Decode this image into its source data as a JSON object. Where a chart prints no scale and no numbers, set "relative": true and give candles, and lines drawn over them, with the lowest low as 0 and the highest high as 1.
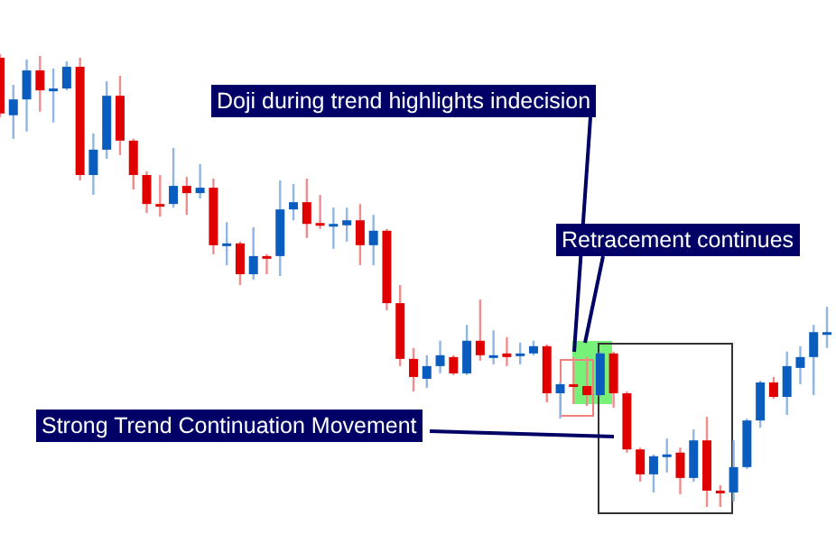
{
  "chart_data": {
    "type": "candlestick",
    "relative": true,
    "categories": [
      null,
      null,
      null,
      null,
      null,
      null,
      null,
      null,
      null,
      null,
      null,
      null,
      null,
      null,
      null,
      null,
      null,
      null,
      null,
      null,
      null,
      null,
      null,
      null,
      null,
      null,
      null,
      null,
      null,
      null,
      null,
      null,
      null,
      null,
      null,
      null,
      null,
      null,
      null,
      null,
      null,
      null,
      null,
      null,
      null,
      null,
      null,
      null,
      null,
      null,
      null,
      null,
      null,
      null,
      null,
      null,
      null,
      null,
      null,
      null,
      null,
      null,
      null
    ],
    "ohlc": [
      [
        0.992,
        1,
        0.861,
        0.869
      ],
      [
        0.865,
        0.932,
        0.813,
        0.9
      ],
      [
        0.9,
        0.988,
        0.829,
        0.964
      ],
      [
        0.964,
        0.996,
        0.873,
        0.92
      ],
      [
        0.922,
        0.968,
        0.849,
        0.924
      ],
      [
        0.924,
        0.984,
        0.92,
        0.972
      ],
      [
        0.972,
        0.992,
        0.721,
        0.733
      ],
      [
        0.733,
        0.825,
        0.689,
        0.789
      ],
      [
        0.789,
        0.94,
        0.769,
        0.908
      ],
      [
        0.908,
        0.952,
        0.777,
        0.809
      ],
      [
        0.809,
        0.813,
        0.701,
        0.733
      ],
      [
        0.733,
        0.741,
        0.649,
        0.669
      ],
      [
        0.669,
        0.733,
        0.641,
        0.665
      ],
      [
        0.669,
        0.793,
        0.661,
        0.709
      ],
      [
        0.709,
        0.729,
        0.645,
        0.693
      ],
      [
        0.693,
        0.757,
        0.681,
        0.705
      ],
      [
        0.705,
        0.725,
        0.558,
        0.578
      ],
      [
        0.58,
        0.629,
        0.534,
        0.582
      ],
      [
        0.582,
        0.586,
        0.49,
        0.514
      ],
      [
        0.514,
        0.618,
        0.502,
        0.554
      ],
      [
        0.554,
        0.558,
        0.514,
        0.55
      ],
      [
        0.554,
        0.721,
        0.51,
        0.657
      ],
      [
        0.657,
        0.713,
        0.633,
        0.673
      ],
      [
        0.673,
        0.725,
        0.594,
        0.625
      ],
      [
        0.627,
        0.689,
        0.614,
        0.624
      ],
      [
        0.622,
        0.661,
        0.57,
        0.625
      ],
      [
        0.622,
        0.661,
        0.586,
        0.633
      ],
      [
        0.633,
        0.669,
        0.534,
        0.578
      ],
      [
        0.578,
        0.645,
        0.534,
        0.61
      ],
      [
        0.61,
        0.614,
        0.434,
        0.45
      ],
      [
        0.45,
        0.49,
        0.311,
        0.327
      ],
      [
        0.327,
        0.351,
        0.255,
        0.287
      ],
      [
        0.283,
        0.335,
        0.263,
        0.311
      ],
      [
        0.311,
        0.367,
        0.295,
        0.335
      ],
      [
        0.331,
        0.335,
        0.291,
        0.295
      ],
      [
        0.295,
        0.402,
        0.291,
        0.367
      ],
      [
        0.367,
        0.458,
        0.323,
        0.335
      ],
      [
        0.333,
        0.39,
        0.315,
        0.335
      ],
      [
        0.339,
        0.375,
        0.311,
        0.331
      ],
      [
        0.333,
        0.363,
        0.315,
        0.339
      ],
      [
        0.339,
        0.367,
        0.335,
        0.355
      ],
      [
        0.355,
        0.359,
        0.231,
        0.251
      ],
      [
        0.251,
        0.275,
        0.195,
        0.271
      ],
      [
        0.271,
        0.331,
        0.227,
        0.267
      ],
      [
        0.267,
        0.331,
        0.223,
        0.247
      ],
      [
        0.247,
        0.343,
        0.243,
        0.339
      ],
      [
        0.339,
        0.343,
        0.219,
        0.251
      ],
      [
        0.251,
        0.255,
        0.12,
        0.127
      ],
      [
        0.127,
        0.131,
        0.056,
        0.072
      ],
      [
        0.072,
        0.116,
        0.032,
        0.112
      ],
      [
        0.112,
        0.151,
        0.076,
        0.116
      ],
      [
        0.12,
        0.131,
        0.028,
        0.064
      ],
      [
        0.064,
        0.171,
        0.056,
        0.147
      ],
      [
        0.147,
        0.199,
        0,
        0.036
      ],
      [
        0.036,
        0.048,
        0,
        0.03
      ],
      [
        0.032,
        0.147,
        0.012,
        0.088
      ],
      [
        0.088,
        0.195,
        0.084,
        0.191
      ],
      [
        0.191,
        0.279,
        0.175,
        0.275
      ],
      [
        0.275,
        0.287,
        0.239,
        0.243
      ],
      [
        0.243,
        0.343,
        0.203,
        0.311
      ],
      [
        0.307,
        0.355,
        0.271,
        0.331
      ],
      [
        0.331,
        0.402,
        0.247,
        0.386
      ],
      [
        0.384,
        0.442,
        0.351,
        0.386
      ]
    ],
    "colors": [
      "#e00000",
      "#0a5cbe",
      "#0a5cbe",
      "#e00000",
      "#0a5cbe",
      "#0a5cbe",
      "#e00000",
      "#0a5cbe",
      "#0a5cbe",
      "#e00000",
      "#e00000",
      "#e00000",
      "#e00000",
      "#0a5cbe",
      "#e00000",
      "#0a5cbe",
      "#e00000",
      "#0a5cbe",
      "#e00000",
      "#0a5cbe",
      "#e00000",
      "#0a5cbe",
      "#0a5cbe",
      "#e00000",
      "#e00000",
      "#0a5cbe",
      "#0a5cbe",
      "#e00000",
      "#0a5cbe",
      "#e00000",
      "#e00000",
      "#e00000",
      "#0a5cbe",
      "#0a5cbe",
      "#e00000",
      "#0a5cbe",
      "#e00000",
      "#0a5cbe",
      "#e00000",
      "#0a5cbe",
      "#0a5cbe",
      "#e00000",
      "#0a5cbe",
      "#e00000",
      "#e00000",
      "#0a5cbe",
      "#e00000",
      "#e00000",
      "#e00000",
      "#0a5cbe",
      "#0a5cbe",
      "#e00000",
      "#0a5cbe",
      "#e00000",
      "#e00000",
      "#0a5cbe",
      "#0a5cbe",
      "#0a5cbe",
      "#e00000",
      "#0a5cbe",
      "#0a5cbe",
      "#0a5cbe",
      "#0a5cbe"
    ],
    "annotations": [
      "Doji during trend highlights indecision",
      "Retracement continues",
      "Strong Trend Continuation Movement"
    ]
  }
}
